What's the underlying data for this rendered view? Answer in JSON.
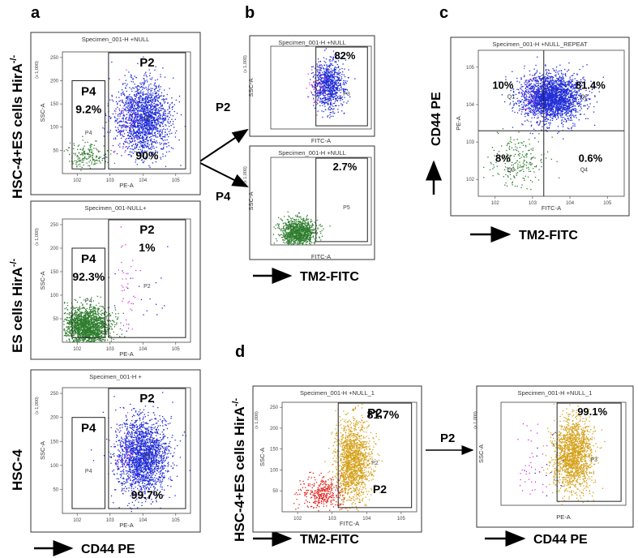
{
  "figure": {
    "panel_letters": [
      "a",
      "b",
      "c",
      "d"
    ],
    "row_labels": {
      "a1": "HSC-4+ES cells HirA",
      "a1_sup": "-/-",
      "a2": "ES cells HirA",
      "a2_sup": "-/-",
      "a3": "HSC-4",
      "d": "HSC-4+ES cells HirA",
      "d_sup": "-/-"
    },
    "axis_arrows": {
      "a": "CD44 PE",
      "b": "TM2-FITC",
      "c_x": "TM2-FITC",
      "c_y": "CD44 PE",
      "d1": "TM2-FITC",
      "d2": "CD44 PE"
    },
    "gate_arrows": {
      "b_p2": "P2",
      "b_p4": "P4",
      "d_p2": "P2"
    },
    "colors": {
      "blue": "#1f2bd6",
      "green": "#2e7d2e",
      "red": "#e0201a",
      "magenta": "#d21bd6",
      "gold": "#d4a017"
    }
  },
  "chart_data": [
    {
      "id": "a1",
      "type": "scatter",
      "title": "Specimen_001-H +NULL",
      "xlabel": "PE-A",
      "ylabel": "SSC-A",
      "yscale_note": "(x 1,000)",
      "xscale": "log",
      "xticks": [
        "10^2",
        "10^3",
        "10^4",
        "10^5"
      ],
      "yticks": [
        "50",
        "100",
        "150",
        "200",
        "250"
      ],
      "ylim": [
        0,
        262
      ],
      "gates": [
        {
          "name": "P4",
          "xrange": [
            70,
            700
          ],
          "yrange": [
            10,
            200
          ],
          "big": "P4",
          "percent": "9.2%"
        },
        {
          "name": "P2",
          "xrange": [
            900,
            200000
          ],
          "yrange": [
            10,
            262
          ],
          "big": "P2",
          "percent": "90%"
        }
      ],
      "populations": [
        {
          "color": "green",
          "share": 0.092,
          "xcenter_log": 2.3,
          "xspread_log": 0.3,
          "ycenter": 40,
          "yspread": 15
        },
        {
          "color": "blue",
          "share": 0.9,
          "xcenter_log": 4.0,
          "xspread_log": 0.4,
          "ycenter": 120,
          "yspread": 40
        }
      ]
    },
    {
      "id": "a2",
      "type": "scatter",
      "title": "Specimen_001-NULL+",
      "xlabel": "PE-A",
      "ylabel": "SSC-A",
      "yscale_note": "(x 1,000)",
      "xscale": "log",
      "xticks": [
        "10^2",
        "10^3",
        "10^4",
        "10^5"
      ],
      "yticks": [
        "50",
        "100",
        "150",
        "200",
        "250"
      ],
      "ylim": [
        0,
        262
      ],
      "gates": [
        {
          "name": "P4",
          "xrange": [
            70,
            700
          ],
          "yrange": [
            10,
            200
          ],
          "big": "P4",
          "percent": "92.3%"
        },
        {
          "name": "P2",
          "xrange": [
            900,
            200000
          ],
          "yrange": [
            10,
            262
          ],
          "big": "P2",
          "percent": "1%"
        }
      ],
      "populations": [
        {
          "color": "green",
          "share": 0.923,
          "xcenter_log": 2.3,
          "xspread_log": 0.35,
          "ycenter": 35,
          "yspread": 20
        },
        {
          "color": "blue",
          "share": 0.01,
          "xcenter_log": 4.0,
          "xspread_log": 0.6,
          "ycenter": 110,
          "yspread": 60
        }
      ]
    },
    {
      "id": "a3",
      "type": "scatter",
      "title": "Specimen_001-H +",
      "xlabel": "PE-A",
      "ylabel": "SSC-A",
      "yscale_note": "(x 1,000)",
      "xscale": "log",
      "xticks": [
        "10^2",
        "10^3",
        "10^4",
        "10^5"
      ],
      "yticks": [
        "50",
        "100",
        "150",
        "200",
        "250"
      ],
      "ylim": [
        0,
        262
      ],
      "gates": [
        {
          "name": "P4",
          "xrange": [
            70,
            700
          ],
          "yrange": [
            10,
            200
          ],
          "big": "P4",
          "percent": ""
        },
        {
          "name": "P2",
          "xrange": [
            900,
            200000
          ],
          "yrange": [
            10,
            262
          ],
          "big": "P2",
          "percent": "99.7%"
        }
      ],
      "populations": [
        {
          "color": "blue",
          "share": 0.997,
          "xcenter_log": 4.0,
          "xspread_log": 0.4,
          "ycenter": 120,
          "yspread": 40
        }
      ]
    },
    {
      "id": "b1",
      "type": "scatter",
      "title": "Specimen_001-H +NULL",
      "xlabel": "FITC-A",
      "ylabel": "SSC-A",
      "yscale_note": "(x 1,000)",
      "xscale": "log",
      "gates": [
        {
          "name": "P3",
          "xrange": [
            2000,
            200000
          ],
          "yrange": [
            10,
            262
          ],
          "percent": "82%"
        }
      ],
      "populations": [
        {
          "color": "blue",
          "share": 0.82,
          "xcenter_log": 3.8,
          "xspread_log": 0.3,
          "ycenter": 140,
          "yspread": 40
        }
      ]
    },
    {
      "id": "b2",
      "type": "scatter",
      "title": "Specimen_001-H +NULL",
      "xlabel": "FITC-A",
      "ylabel": "SSC-A",
      "yscale_note": "(x 1,000)",
      "xscale": "log",
      "gates": [
        {
          "name": "P5",
          "xrange": [
            2000,
            200000
          ],
          "yrange": [
            10,
            262
          ],
          "percent": "2.7%"
        }
      ],
      "populations": [
        {
          "color": "green",
          "share": 0.973,
          "xcenter_log": 2.6,
          "xspread_log": 0.35,
          "ycenter": 40,
          "yspread": 20
        }
      ]
    },
    {
      "id": "c",
      "type": "scatter",
      "title": "Specimen_001-H +NULL_REPEAT",
      "xlabel": "FITC-A",
      "ylabel": "PE-A",
      "xscale": "log",
      "yscale": "log",
      "xticks": [
        "10^2",
        "10^3",
        "10^4",
        "10^5"
      ],
      "yticks": [
        "10^2",
        "10^3",
        "10^4",
        "10^5"
      ],
      "quadrants": [
        {
          "name": "Q1",
          "percent": "10%"
        },
        {
          "name": "Q2",
          "percent": "81.4%"
        },
        {
          "name": "Q3",
          "percent": "8%"
        },
        {
          "name": "Q4",
          "percent": "0.6%"
        }
      ],
      "populations": [
        {
          "color": "blue",
          "share": 0.914,
          "xcenter_log": 3.5,
          "xspread_log": 0.4,
          "ycenter_log": 4.2,
          "yspread_log": 0.3
        },
        {
          "color": "green",
          "share": 0.08,
          "xcenter_log": 2.6,
          "xspread_log": 0.4,
          "ycenter_log": 2.5,
          "yspread_log": 0.35
        }
      ]
    },
    {
      "id": "d1",
      "type": "scatter",
      "title": "Specimen_001-H +NULL_1",
      "xlabel": "FITC-A",
      "ylabel": "SSC-A",
      "yscale_note": "(x 1,000)",
      "xscale": "log",
      "xticks": [
        "10^2",
        "10^3",
        "10^4",
        "10^5"
      ],
      "yticks": [
        "50",
        "100",
        "150",
        "200",
        "250"
      ],
      "ylim": [
        0,
        262
      ],
      "gates": [
        {
          "name": "P2",
          "xrange": [
            1500,
            200000
          ],
          "yrange": [
            10,
            262
          ],
          "big": "P2",
          "percent": "81.7%"
        }
      ],
      "populations": [
        {
          "color": "red",
          "share": 0.183,
          "xcenter_log": 2.7,
          "xspread_log": 0.35,
          "ycenter": 45,
          "yspread": 20
        },
        {
          "color": "gold",
          "share": 0.817,
          "xcenter_log": 3.6,
          "xspread_log": 0.25,
          "ycenter": 120,
          "yspread": 50
        }
      ]
    },
    {
      "id": "d2",
      "type": "scatter",
      "title": "Specimen_001-H +NULL_1",
      "xlabel": "PE-A",
      "ylabel": "SSC-A",
      "yscale_note": "(x 1,000)",
      "xscale": "log",
      "gates": [
        {
          "name": "P3",
          "xrange": [
            2000,
            200000
          ],
          "yrange": [
            10,
            262
          ],
          "percent": "99.1%"
        }
      ],
      "populations": [
        {
          "color": "gold",
          "share": 0.991,
          "xcenter_log": 3.8,
          "xspread_log": 0.3,
          "ycenter": 130,
          "yspread": 45
        },
        {
          "color": "blue",
          "share": 0.009,
          "xcenter_log": 3.0,
          "xspread_log": 0.3,
          "ycenter": 110,
          "yspread": 50
        }
      ]
    }
  ]
}
